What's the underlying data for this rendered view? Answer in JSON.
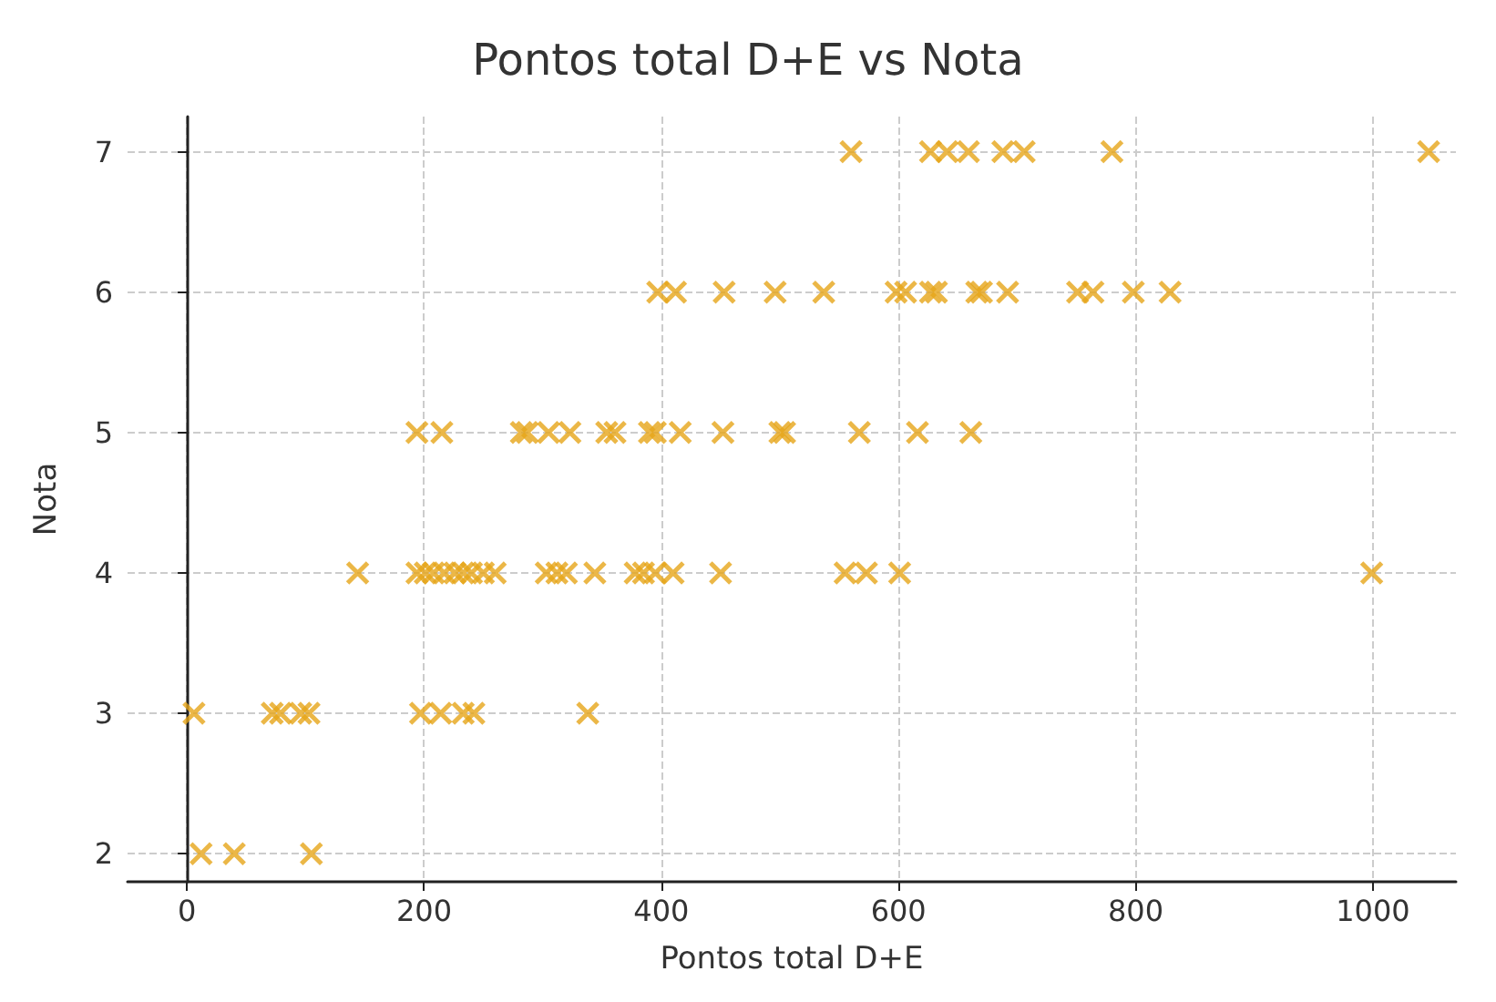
{
  "chart_data": {
    "type": "scatter",
    "title": "Pontos total D+E vs Nota",
    "xlabel": "Pontos total D+E",
    "ylabel": "Nota",
    "marker": "cross",
    "grid": true,
    "xlim": [
      -50,
      1070
    ],
    "ylim": [
      1.8,
      7.25
    ],
    "xticks": [
      0,
      200,
      400,
      600,
      800,
      1000
    ],
    "yticks": [
      2,
      3,
      4,
      5,
      6,
      7
    ],
    "series": [
      {
        "color": "#e6a519",
        "x": [
          560,
          627,
          641,
          659,
          688,
          706,
          780,
          1047,
          397,
          412,
          453,
          496,
          537,
          598,
          606,
          627,
          632,
          666,
          670,
          692,
          751,
          764,
          798,
          829,
          194,
          215,
          282,
          287,
          305,
          323,
          354,
          361,
          390,
          395,
          416,
          452,
          500,
          504,
          567,
          616,
          661,
          144,
          194,
          201,
          208,
          217,
          226,
          233,
          240,
          250,
          260,
          303,
          312,
          320,
          344,
          378,
          385,
          395,
          410,
          450,
          555,
          573,
          601,
          999,
          6,
          72,
          79,
          96,
          103,
          197,
          214,
          233,
          242,
          338,
          12,
          40,
          105
        ],
        "values": [
          7,
          7,
          7,
          7,
          7,
          7,
          7,
          7,
          6,
          6,
          6,
          6,
          6,
          6,
          6,
          6,
          6,
          6,
          6,
          6,
          6,
          6,
          6,
          6,
          5,
          5,
          5,
          5,
          5,
          5,
          5,
          5,
          5,
          5,
          5,
          5,
          5,
          5,
          5,
          5,
          5,
          4,
          4,
          4,
          4,
          4,
          4,
          4,
          4,
          4,
          4,
          4,
          4,
          4,
          4,
          4,
          4,
          4,
          4,
          4,
          4,
          4,
          4,
          4,
          3,
          3,
          3,
          3,
          3,
          3,
          3,
          3,
          3,
          3,
          2,
          2,
          2
        ]
      }
    ]
  }
}
